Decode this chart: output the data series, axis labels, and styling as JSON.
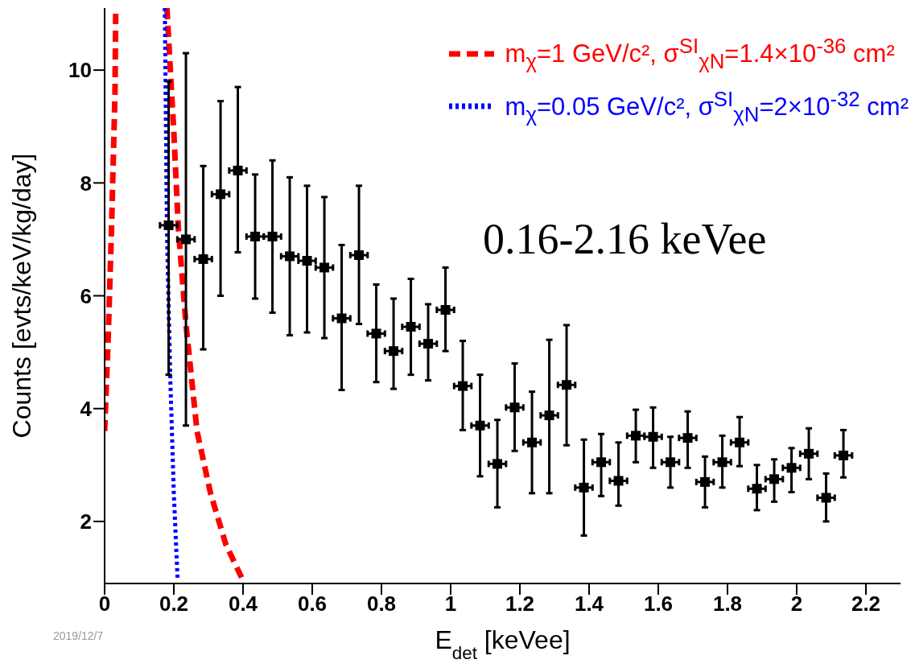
{
  "chart_data": {
    "type": "scatter",
    "xlabel": "E$_{det}$ [keVee]",
    "ylabel": "Counts [evts/keV/kg/day]",
    "annotations": [
      "0.16-2.16 keVee",
      "2019/12/7"
    ],
    "xlim": [
      0,
      2.3
    ],
    "xticks": [
      0,
      0.2,
      0.4,
      0.6,
      0.8,
      1,
      1.2,
      1.4,
      1.6,
      1.8,
      2,
      2.2
    ],
    "ylim": [
      0.9,
      11.1
    ],
    "yticks": [
      2,
      4,
      6,
      8,
      10
    ],
    "grid": false,
    "legend": "top right",
    "series": [
      {
        "type": "line",
        "name": "m$_{χ}$=1 GeV/c², σ$^{SI}$$_{χN}$=1.4×10$^{-36}$ cm²",
        "color": "#ff0000",
        "line_style": "dashed",
        "x": [
          0,
          0.01,
          0.02,
          0.03,
          0.032,
          0.1,
          0.18,
          0.2,
          0.213,
          0.235,
          0.267,
          0.306,
          0.35,
          0.394,
          0.4
        ],
        "values": [
          3.6,
          5.2,
          7.2,
          9.6,
          11.0,
          null,
          11.1,
          8.9,
          7.2,
          5.5,
          3.6,
          2.5,
          1.6,
          1.03,
          0.95
        ]
      },
      {
        "type": "line",
        "name": "m$_{χ}$=0.05 GeV/c², σ$^{SI}$$_{χN}$=2×10$^{-32}$ cm²",
        "color": "#0000ff",
        "line_style": "dotted",
        "x": [
          0.174,
          0.18,
          0.185,
          0.19,
          0.2,
          0.211
        ],
        "values": [
          11.1,
          7.2,
          5.8,
          4.5,
          2.5,
          0.96
        ]
      },
      {
        "color": "#000000",
        "marker": "square",
        "x": [
          0.185,
          0.235,
          0.285,
          0.335,
          0.385,
          0.435,
          0.485,
          0.535,
          0.585,
          0.635,
          0.685,
          0.735,
          0.785,
          0.835,
          0.885,
          0.935,
          0.985,
          1.035,
          1.085,
          1.135,
          1.185,
          1.235,
          1.285,
          1.335,
          1.385,
          1.435,
          1.485,
          1.535,
          1.585,
          1.635,
          1.685,
          1.735,
          1.785,
          1.835,
          1.885,
          1.935,
          1.985,
          2.035,
          2.085,
          2.135
        ],
        "values": [
          7.25,
          7.0,
          6.65,
          7.8,
          8.22,
          7.05,
          7.05,
          6.7,
          6.62,
          6.5,
          5.6,
          6.72,
          5.33,
          5.02,
          5.45,
          5.15,
          5.75,
          4.4,
          3.7,
          3.02,
          4.02,
          3.4,
          3.88,
          4.42,
          2.6,
          3.05,
          2.72,
          3.52,
          3.5,
          3.05,
          3.48,
          2.7,
          3.05,
          3.4,
          2.58,
          2.75,
          2.95,
          3.2,
          2.42,
          3.17
        ],
        "errors": [
          [
            4.6,
            9.8
          ],
          [
            3.7,
            10.3
          ],
          [
            5.05,
            8.3
          ],
          [
            6.0,
            9.45
          ],
          [
            6.77,
            9.7
          ],
          [
            5.95,
            8.15
          ],
          [
            5.7,
            8.4
          ],
          [
            5.3,
            8.1
          ],
          [
            5.35,
            7.95
          ],
          [
            5.25,
            7.75
          ],
          [
            4.33,
            6.9
          ],
          [
            5.5,
            7.95
          ],
          [
            4.47,
            6.2
          ],
          [
            4.35,
            5.95
          ],
          [
            4.6,
            6.3
          ],
          [
            4.5,
            5.85
          ],
          [
            5.02,
            6.5
          ],
          [
            3.62,
            5.2
          ],
          [
            2.8,
            4.6
          ],
          [
            2.25,
            3.8
          ],
          [
            3.25,
            4.8
          ],
          [
            2.5,
            4.3
          ],
          [
            2.5,
            5.22
          ],
          [
            3.35,
            5.48
          ],
          [
            1.75,
            3.45
          ],
          [
            2.45,
            3.55
          ],
          [
            2.28,
            3.4
          ],
          [
            3.05,
            3.98
          ],
          [
            2.95,
            4.02
          ],
          [
            2.6,
            3.5
          ],
          [
            2.95,
            3.95
          ],
          [
            2.25,
            3.15
          ],
          [
            2.6,
            3.52
          ],
          [
            2.98,
            3.85
          ],
          [
            2.2,
            3.0
          ],
          [
            2.35,
            3.1
          ],
          [
            2.52,
            3.3
          ],
          [
            2.75,
            3.65
          ],
          [
            2.0,
            2.85
          ],
          [
            2.78,
            3.62
          ]
        ],
        "xerrors": [
          0.025,
          0.025,
          0.025,
          0.025,
          0.025,
          0.025,
          0.025,
          0.025,
          0.025,
          0.025,
          0.025,
          0.025,
          0.025,
          0.025,
          0.025,
          0.025,
          0.025,
          0.025,
          0.025,
          0.025,
          0.025,
          0.025,
          0.025,
          0.025,
          0.025,
          0.025,
          0.025,
          0.025,
          0.025,
          0.025,
          0.025,
          0.025,
          0.025,
          0.025,
          0.025,
          0.025,
          0.025,
          0.025,
          0.025,
          0.025
        ]
      }
    ]
  }
}
